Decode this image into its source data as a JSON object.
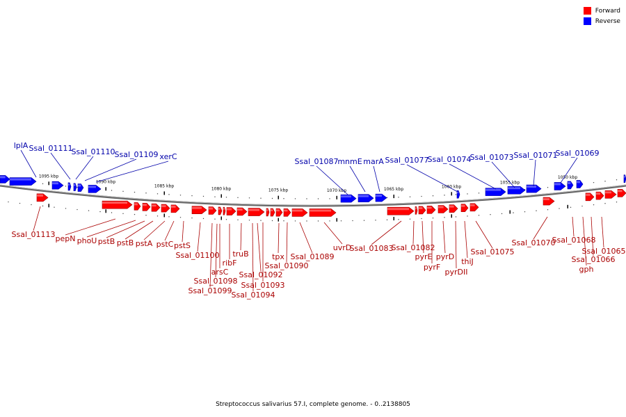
{
  "legend": {
    "forward_label": "Forward",
    "reverse_label": "Reverse",
    "forward_color": "#ff0000",
    "reverse_color": "#0000ff"
  },
  "caption": "Streptococcus salivarius 57.I, complete genome. - 0..2138805",
  "kbp_ticks": [
    "1095 kbp",
    "1090 kbp",
    "1085 kbp",
    "1080 kbp",
    "1075 kbp",
    "1070 kbp",
    "1065 kbp",
    "1060 kbp",
    "1055 kbp",
    "1050 kbp"
  ],
  "reverse_labels": [
    "lplA",
    "Ssal_01111",
    "Ssal_01110",
    "Ssal_01109",
    "xerC",
    "Ssal_01087",
    "mnmE",
    "marA",
    "Ssal_01077",
    "Ssal_01074",
    "Ssal_01073",
    "Ssal_01071",
    "Ssal_01069"
  ],
  "forward_labels": [
    "Ssal_01113",
    "pepN",
    "phoU",
    "pstB",
    "pstB",
    "pstA",
    "pstC",
    "pstS",
    "Ssal_01100",
    "arsC",
    "Ssal_01098",
    "Ssal_01099",
    "ribF",
    "truB",
    "Ssal_01092",
    "Ssal_01093",
    "Ssal_01094",
    "tpx",
    "Ssal_01090",
    "Ssal_01089",
    "uvrD",
    "Ssal_01083",
    "Ssal_01082",
    "pyrE",
    "pyrF",
    "pyrD",
    "pyrDII",
    "thiJ",
    "Ssal_01075",
    "Ssal_01070",
    "Ssal_01068",
    "gph",
    "Ssal_01066",
    "Ssal_01065"
  ]
}
